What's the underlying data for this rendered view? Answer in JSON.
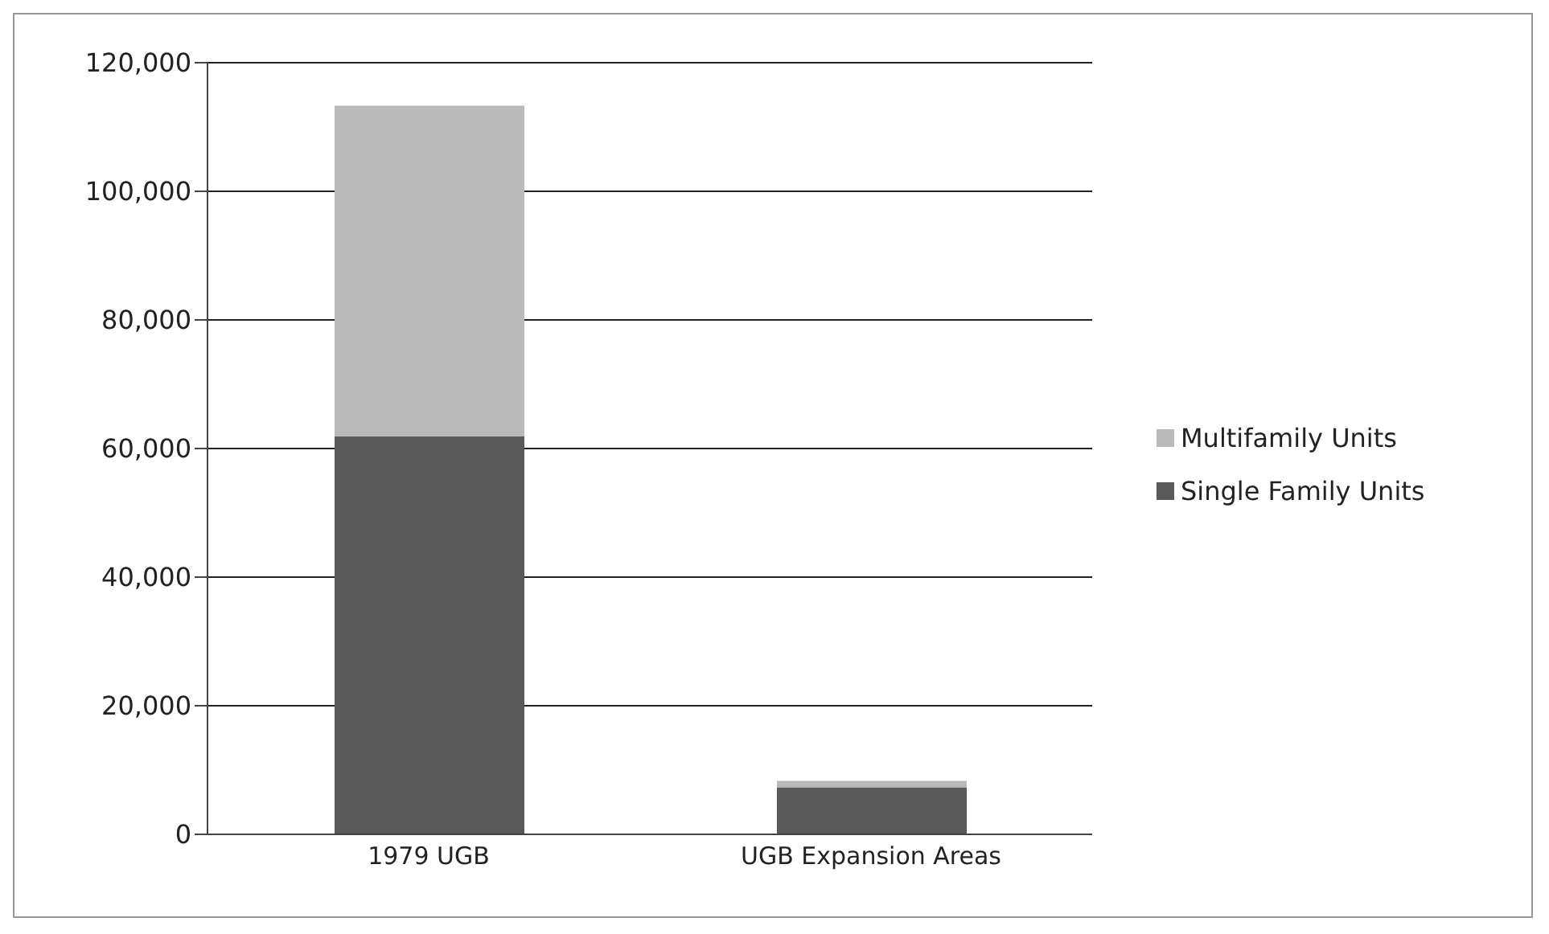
{
  "chart_data": {
    "type": "bar",
    "stacked": true,
    "categories": [
      "1979 UGB",
      "UGB Expansion Areas"
    ],
    "series": [
      {
        "name": "Single Family Units",
        "color": "#595959",
        "values": [
          61900,
          7300
        ]
      },
      {
        "name": "Multifamily Units",
        "color": "#b9b9b9",
        "values": [
          51400,
          1000
        ]
      }
    ],
    "ylim": [
      0,
      120000
    ],
    "yticks": [
      {
        "value": 0,
        "label": "0"
      },
      {
        "value": 20000,
        "label": "20,000"
      },
      {
        "value": 40000,
        "label": "40,000"
      },
      {
        "value": 60000,
        "label": "60,000"
      },
      {
        "value": 80000,
        "label": "80,000"
      },
      {
        "value": 100000,
        "label": "100,000"
      },
      {
        "value": 120000,
        "label": "120,000"
      }
    ],
    "grid": "y",
    "legend": "right"
  }
}
